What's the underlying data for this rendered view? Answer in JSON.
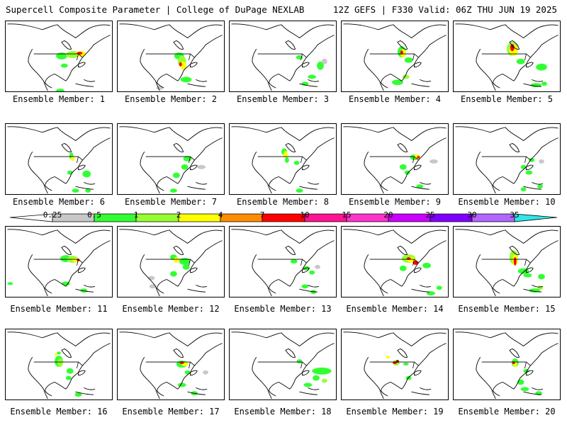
{
  "header": {
    "title": "Supercell Composite Parameter | College of DuPage NEXLAB",
    "run_info": "12Z GEFS | F330 Valid: 06Z THU JUN 19 2025"
  },
  "caption_prefix": "Ensemble Member: ",
  "members": [
    {
      "id": 1,
      "label": "Ensemble Member: 1"
    },
    {
      "id": 2,
      "label": "Ensemble Member: 2"
    },
    {
      "id": 3,
      "label": "Ensemble Member: 3"
    },
    {
      "id": 4,
      "label": "Ensemble Member: 4"
    },
    {
      "id": 5,
      "label": "Ensemble Member: 5"
    },
    {
      "id": 6,
      "label": "Ensemble Member: 6"
    },
    {
      "id": 7,
      "label": "Ensemble Member: 7"
    },
    {
      "id": 8,
      "label": "Ensemble Member: 8"
    },
    {
      "id": 9,
      "label": "Ensemble Member: 9"
    },
    {
      "id": 10,
      "label": "Ensemble Member: 10"
    },
    {
      "id": 11,
      "label": "Ensemble Member: 11"
    },
    {
      "id": 12,
      "label": "Ensemble Member: 12"
    },
    {
      "id": 13,
      "label": "Ensemble Member: 13"
    },
    {
      "id": 14,
      "label": "Ensemble Member: 14"
    },
    {
      "id": 15,
      "label": "Ensemble Member: 15"
    },
    {
      "id": 16,
      "label": "Ensemble Member: 16"
    },
    {
      "id": 17,
      "label": "Ensemble Member: 17"
    },
    {
      "id": 18,
      "label": "Ensemble Member: 18"
    },
    {
      "id": 19,
      "label": "Ensemble Member: 19"
    },
    {
      "id": 20,
      "label": "Ensemble Member: 20"
    }
  ],
  "colorbar": {
    "labels": [
      "0.25",
      "0.5",
      "1",
      "2",
      "4",
      "7",
      "10",
      "15",
      "20",
      "25",
      "30",
      "35"
    ],
    "colors": [
      "#ffffff",
      "#c8c8c8",
      "#32ff32",
      "#96ff32",
      "#ffff00",
      "#ff8c00",
      "#ff0000",
      "#ff1493",
      "#ff33cc",
      "#cc00ff",
      "#7f00ff",
      "#b266ff",
      "#33e6e6"
    ]
  },
  "colors": {
    "coastline": "#000000",
    "border": "#000000",
    "low": "#c8c8c8",
    "green": "#32ff32",
    "lime": "#96ff32",
    "yellow": "#ffff00",
    "orange": "#ff8c00",
    "red": "#ff0000",
    "darkred": "#8b0000"
  }
}
